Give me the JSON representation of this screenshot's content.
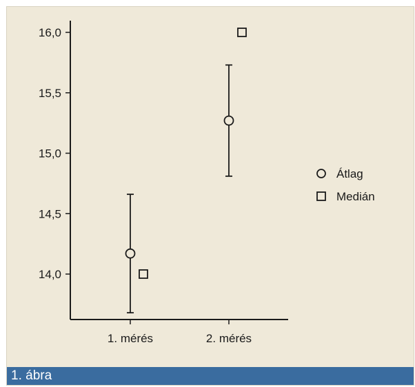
{
  "figure": {
    "caption": "1. ábra",
    "background": "#efe9d9",
    "caption_background": "#3a6c9f"
  },
  "chart_data": {
    "type": "scatter",
    "title": "",
    "xlabel": "",
    "ylabel": "",
    "categories": [
      "1. mérés",
      "2. mérés"
    ],
    "ylim": [
      13.7,
      16.1
    ],
    "yticks": [
      14.0,
      14.5,
      15.0,
      15.5,
      16.0
    ],
    "ytick_labels": [
      "14,0",
      "14,5",
      "15,0",
      "15,5",
      "16,0"
    ],
    "series": [
      {
        "name": "Átlag",
        "marker": "circle",
        "values": [
          14.17,
          15.27
        ],
        "error_low": [
          13.68,
          14.81
        ],
        "error_high": [
          14.66,
          15.73
        ]
      },
      {
        "name": "Medián",
        "marker": "square",
        "values": [
          14.0,
          16.0
        ]
      }
    ],
    "legend_position": "right",
    "grid": false
  }
}
